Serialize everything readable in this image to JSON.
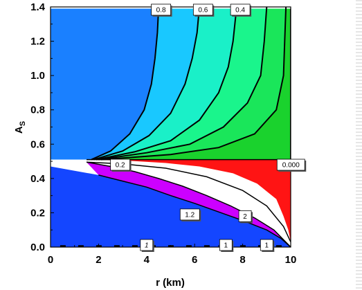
{
  "chart_data": {
    "type": "contour",
    "xlabel": "r (km)",
    "ylabel_main": "A",
    "ylabel_sub": "S",
    "xlim": [
      0,
      10
    ],
    "ylim": [
      0,
      1.4
    ],
    "x_ticks": [
      "0",
      "2",
      "4",
      "6",
      "8",
      "10"
    ],
    "y_ticks": [
      "0.0",
      "0.2",
      "0.4",
      "0.6",
      "0.8",
      "1.0",
      "1.2",
      "1.4"
    ],
    "colors": {
      "upper_cells": [
        "#1a80ff",
        "#19c8ff",
        "#1af0c8",
        "#1af58c",
        "#1ae65a",
        "#1ad22d"
      ],
      "gap": "#ffffff",
      "red": "#ff1414",
      "magenta": "#cc00ff",
      "lower_blue": "#1446ff",
      "contour": "#000000"
    },
    "upper_contours": [
      {
        "label": "0.8",
        "label_at": [
          4.6,
          1.4
        ],
        "points": [
          [
            1.7,
            0.51
          ],
          [
            2.5,
            0.56
          ],
          [
            3.3,
            0.66
          ],
          [
            3.9,
            0.8
          ],
          [
            4.2,
            0.95
          ],
          [
            4.35,
            1.1
          ],
          [
            4.45,
            1.25
          ],
          [
            4.5,
            1.4
          ]
        ]
      },
      {
        "label": "0.6",
        "label_at": [
          6.35,
          1.4
        ],
        "points": [
          [
            1.8,
            0.51
          ],
          [
            3.0,
            0.56
          ],
          [
            4.1,
            0.65
          ],
          [
            5.0,
            0.78
          ],
          [
            5.6,
            0.95
          ],
          [
            5.9,
            1.1
          ],
          [
            6.1,
            1.25
          ],
          [
            6.2,
            1.4
          ]
        ]
      },
      {
        "label": "0.4",
        "label_at": [
          7.9,
          1.4
        ],
        "points": [
          [
            1.9,
            0.51
          ],
          [
            3.5,
            0.555
          ],
          [
            5.0,
            0.62
          ],
          [
            6.2,
            0.74
          ],
          [
            7.0,
            0.9
          ],
          [
            7.4,
            1.05
          ],
          [
            7.6,
            1.2
          ],
          [
            7.75,
            1.4
          ]
        ]
      },
      {
        "label": "",
        "label_at": null,
        "points": [
          [
            2.0,
            0.51
          ],
          [
            4.0,
            0.55
          ],
          [
            5.8,
            0.6
          ],
          [
            7.2,
            0.7
          ],
          [
            8.2,
            0.84
          ],
          [
            8.75,
            1.0
          ],
          [
            8.9,
            1.2
          ],
          [
            9.0,
            1.4
          ]
        ]
      },
      {
        "label": "",
        "label_at": null,
        "points": [
          [
            2.1,
            0.51
          ],
          [
            5.0,
            0.54
          ],
          [
            7.0,
            0.58
          ],
          [
            8.5,
            0.66
          ],
          [
            9.4,
            0.8
          ],
          [
            9.7,
            1.0
          ],
          [
            9.75,
            1.2
          ],
          [
            9.8,
            1.4
          ]
        ]
      }
    ],
    "upper_label_0_2": "0.2",
    "right_label_0_000": "0.000",
    "lower_contours": [
      {
        "label": "1.2",
        "label_at": [
          5.8,
          0.19
        ]
      },
      {
        "label": "2",
        "label_at": [
          8.1,
          0.18
        ]
      }
    ],
    "bottom_labels": [
      {
        "label": "1",
        "at": [
          4.0,
          0.0
        ],
        "italic": true
      },
      {
        "label": "1",
        "at": [
          7.3,
          0.0
        ],
        "italic": false
      },
      {
        "label": "1",
        "at": [
          9.0,
          0.0
        ],
        "italic": false
      }
    ]
  }
}
